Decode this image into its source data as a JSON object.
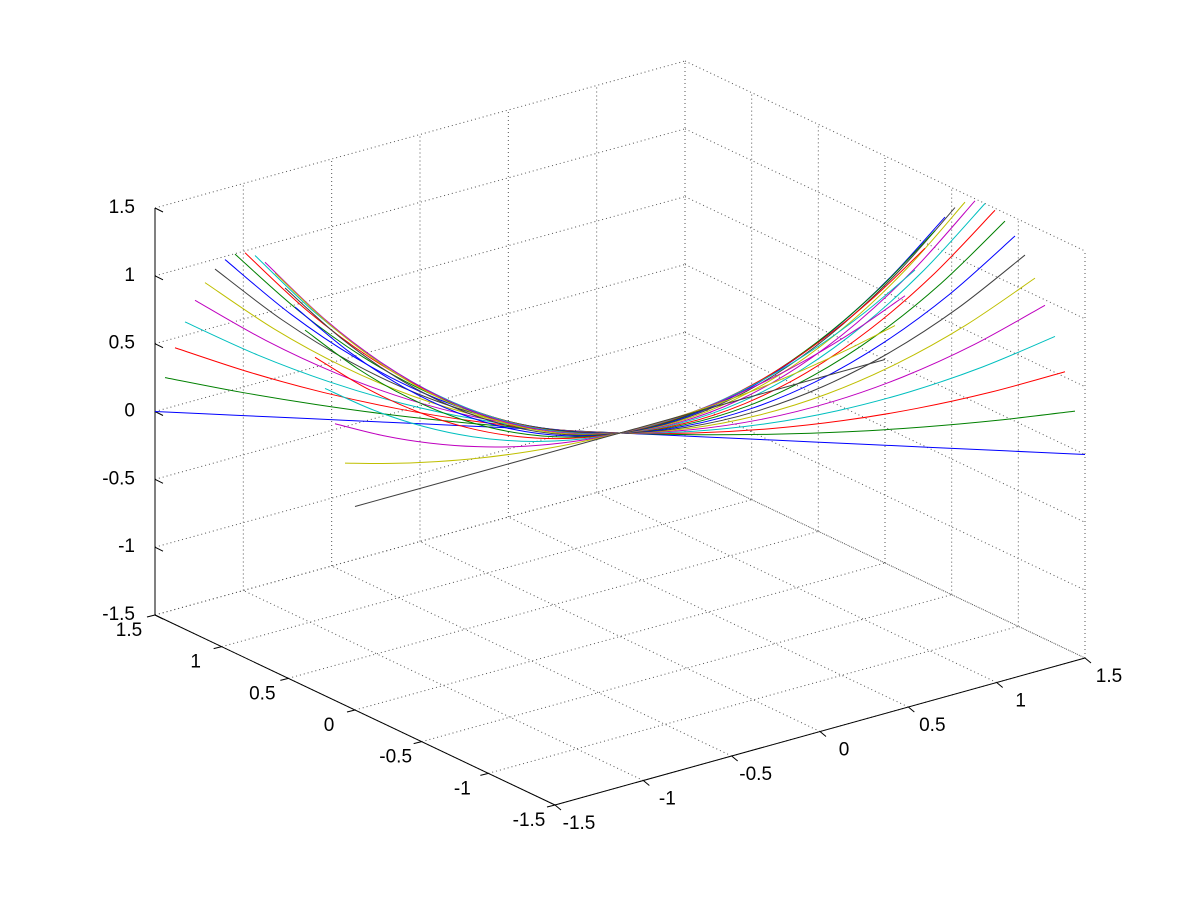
{
  "chart_data": {
    "type": "line3d",
    "xlim": [
      -1.5,
      1.5
    ],
    "ylim": [
      -1.5,
      1.5
    ],
    "zlim": [
      -1.5,
      1.5
    ],
    "xticks": [
      -1.5,
      -1,
      -0.5,
      0,
      0.5,
      1,
      1.5
    ],
    "yticks": [
      -1.5,
      -1,
      -0.5,
      0,
      0.5,
      1,
      1.5
    ],
    "zticks": [
      -1.5,
      -1,
      -0.5,
      0,
      0.5,
      1,
      1.5
    ],
    "grid": true,
    "x": [
      -1.5,
      -1.25,
      -1,
      -0.75,
      -0.5,
      -0.25,
      0,
      0.25,
      0.5,
      0.75,
      1,
      1.25,
      1.5
    ],
    "series": [
      {
        "color": "#0000ff",
        "y": [
          1.5,
          1.25,
          1,
          0.75,
          0.5,
          0.25,
          0,
          -0.25,
          -0.5,
          -0.75,
          -1,
          -1.25,
          -1.5
        ],
        "z": [
          0,
          0,
          0,
          0,
          0,
          0,
          0,
          0,
          0,
          0,
          0,
          0,
          0
        ]
      },
      {
        "color": "#008000",
        "y": [
          1.425,
          1.1875,
          0.95,
          0.7125,
          0.475,
          0.2375,
          0,
          -0.2375,
          -0.475,
          -0.7125,
          -0.95,
          -1.1875,
          -1.425
        ],
        "z": [
          0.285,
          0.198,
          0.127,
          0.071,
          0.032,
          0.008,
          0,
          0.008,
          0.032,
          0.071,
          0.127,
          0.198,
          0.285
        ]
      },
      {
        "color": "#ff0000",
        "y": [
          1.35,
          1.125,
          0.9,
          0.675,
          0.45,
          0.225,
          0,
          -0.225,
          -0.45,
          -0.675,
          -0.9,
          -1.125,
          -1.35
        ],
        "z": [
          0.54,
          0.375,
          0.24,
          0.135,
          0.06,
          0.015,
          0,
          0.015,
          0.06,
          0.135,
          0.24,
          0.375,
          0.54
        ]
      },
      {
        "color": "#00bfbf",
        "y": [
          1.275,
          1.0625,
          0.85,
          0.6375,
          0.425,
          0.2125,
          0,
          -0.2125,
          -0.425,
          -0.6375,
          -0.85,
          -1.0625,
          -1.275
        ],
        "z": [
          0.765,
          0.531,
          0.34,
          0.191,
          0.085,
          0.021,
          0,
          0.021,
          0.085,
          0.191,
          0.34,
          0.531,
          0.765
        ]
      },
      {
        "color": "#bf00bf",
        "y": [
          1.2,
          1,
          0.8,
          0.6,
          0.4,
          0.2,
          0,
          -0.2,
          -0.4,
          -0.6,
          -0.8,
          -1,
          -1.2
        ],
        "z": [
          0.96,
          0.667,
          0.427,
          0.24,
          0.107,
          0.027,
          0,
          0.027,
          0.107,
          0.24,
          0.427,
          0.667,
          0.96
        ]
      },
      {
        "color": "#bfbf00",
        "y": [
          1.125,
          0.9375,
          0.75,
          0.5625,
          0.375,
          0.1875,
          0,
          -0.1875,
          -0.375,
          -0.5625,
          -0.75,
          -0.9375,
          -1.125
        ],
        "z": [
          1.125,
          0.781,
          0.5,
          0.281,
          0.125,
          0.031,
          0,
          0.031,
          0.125,
          0.281,
          0.5,
          0.781,
          1.125
        ]
      },
      {
        "color": "#404040",
        "y": [
          1.05,
          0.875,
          0.7,
          0.525,
          0.35,
          0.175,
          0,
          -0.175,
          -0.35,
          -0.525,
          -0.7,
          -0.875,
          -1.05
        ],
        "z": [
          1.26,
          0.875,
          0.56,
          0.315,
          0.14,
          0.035,
          0,
          0.035,
          0.14,
          0.315,
          0.56,
          0.875,
          1.26
        ]
      },
      {
        "color": "#0000ff",
        "y": [
          0.975,
          0.8125,
          0.65,
          0.4875,
          0.325,
          0.1625,
          0,
          -0.1625,
          -0.325,
          -0.4875,
          -0.65,
          -0.8125,
          -0.975
        ],
        "z": [
          1.365,
          0.948,
          0.607,
          0.341,
          0.152,
          0.038,
          0,
          0.038,
          0.152,
          0.341,
          0.607,
          0.948,
          1.365
        ]
      },
      {
        "color": "#008000",
        "y": [
          0.9,
          0.75,
          0.6,
          0.45,
          0.3,
          0.15,
          0,
          -0.15,
          -0.3,
          -0.45,
          -0.6,
          -0.75,
          -0.9
        ],
        "z": [
          1.44,
          1,
          0.64,
          0.36,
          0.16,
          0.04,
          0,
          0.04,
          0.16,
          0.36,
          0.64,
          1,
          1.44
        ]
      },
      {
        "color": "#ff0000",
        "y": [
          0.825,
          0.6875,
          0.55,
          0.4125,
          0.275,
          0.1375,
          0,
          -0.1375,
          -0.275,
          -0.4125,
          -0.55,
          -0.6875,
          -0.825
        ],
        "z": [
          1.485,
          1.031,
          0.66,
          0.371,
          0.165,
          0.041,
          0,
          0.041,
          0.165,
          0.371,
          0.66,
          1.031,
          1.485
        ]
      },
      {
        "color": "#00bfbf",
        "y": [
          0.75,
          0.625,
          0.5,
          0.375,
          0.25,
          0.125,
          0,
          -0.125,
          -0.25,
          -0.375,
          -0.5,
          -0.625,
          -0.75
        ],
        "z": [
          1.5,
          1.042,
          0.667,
          0.375,
          0.167,
          0.042,
          0,
          0.042,
          0.167,
          0.375,
          0.667,
          1.042,
          1.5
        ]
      },
      {
        "color": "#bf00bf",
        "y": [
          0.675,
          0.5625,
          0.45,
          0.3375,
          0.225,
          0.1125,
          0,
          -0.1125,
          -0.225,
          -0.3375,
          -0.45,
          -0.5625,
          -0.675
        ],
        "z": [
          1.485,
          1.031,
          0.66,
          0.371,
          0.165,
          0.041,
          0,
          0.041,
          0.165,
          0.371,
          0.66,
          1.031,
          1.485
        ]
      },
      {
        "color": "#bfbf00",
        "y": [
          0.6,
          0.5,
          0.4,
          0.3,
          0.2,
          0.1,
          0,
          -0.1,
          -0.2,
          -0.3,
          -0.4,
          -0.5,
          -0.6
        ],
        "z": [
          1.44,
          1,
          0.64,
          0.36,
          0.16,
          0.04,
          0,
          0.04,
          0.16,
          0.36,
          0.64,
          1,
          1.44
        ]
      },
      {
        "color": "#404040",
        "y": [
          0.525,
          0.4375,
          0.35,
          0.2625,
          0.175,
          0.0875,
          0,
          -0.0875,
          -0.175,
          -0.2625,
          -0.35,
          -0.4375,
          -0.525
        ],
        "z": [
          1.365,
          0.948,
          0.607,
          0.341,
          0.152,
          0.038,
          0,
          0.038,
          0.152,
          0.341,
          0.607,
          0.948,
          1.365
        ]
      },
      {
        "color": "#0000ff",
        "y": [
          0.45,
          0.375,
          0.3,
          0.225,
          0.15,
          0.075,
          0,
          -0.075,
          -0.15,
          -0.225,
          -0.3,
          -0.375,
          -0.45
        ],
        "z": [
          1.26,
          0.875,
          0.56,
          0.315,
          0.14,
          0.035,
          0,
          0.035,
          0.14,
          0.315,
          0.56,
          0.875,
          1.26
        ]
      },
      {
        "color": "#008000",
        "y": [
          0.375,
          0.3125,
          0.25,
          0.1875,
          0.125,
          0.0625,
          0,
          -0.0625,
          -0.125,
          -0.1875,
          -0.25,
          -0.3125,
          -0.375
        ],
        "z": [
          1.125,
          0.781,
          0.5,
          0.281,
          0.125,
          0.031,
          0,
          0.031,
          0.125,
          0.281,
          0.5,
          0.781,
          1.125
        ]
      },
      {
        "color": "#ff0000",
        "y": [
          0.3,
          0.25,
          0.2,
          0.15,
          0.1,
          0.05,
          0,
          -0.05,
          -0.1,
          -0.15,
          -0.2,
          -0.25,
          -0.3
        ],
        "z": [
          0.96,
          0.667,
          0.427,
          0.24,
          0.107,
          0.027,
          0,
          0.027,
          0.107,
          0.24,
          0.427,
          0.667,
          0.96
        ]
      },
      {
        "color": "#00bfbf",
        "y": [
          0.225,
          0.1875,
          0.15,
          0.1125,
          0.075,
          0.0375,
          0,
          -0.0375,
          -0.075,
          -0.1125,
          -0.15,
          -0.1875,
          -0.225
        ],
        "z": [
          0.765,
          0.531,
          0.34,
          0.191,
          0.085,
          0.021,
          0,
          0.021,
          0.085,
          0.191,
          0.34,
          0.531,
          0.765
        ]
      },
      {
        "color": "#bf00bf",
        "y": [
          0.15,
          0.125,
          0.1,
          0.075,
          0.05,
          0.025,
          0,
          -0.025,
          -0.05,
          -0.075,
          -0.1,
          -0.125,
          -0.15
        ],
        "z": [
          0.54,
          0.375,
          0.24,
          0.135,
          0.06,
          0.015,
          0,
          0.015,
          0.06,
          0.135,
          0.24,
          0.375,
          0.54
        ]
      },
      {
        "color": "#bfbf00",
        "y": [
          0.075,
          0.0625,
          0.05,
          0.0375,
          0.025,
          0.0125,
          0,
          -0.0125,
          -0.025,
          -0.0375,
          -0.05,
          -0.0625,
          -0.075
        ],
        "z": [
          0.285,
          0.198,
          0.127,
          0.071,
          0.032,
          0.008,
          0,
          0.008,
          0.032,
          0.071,
          0.127,
          0.198,
          0.285
        ]
      },
      {
        "color": "#404040",
        "y": [
          0,
          0,
          0,
          0,
          0,
          0,
          0,
          0,
          0,
          0,
          0,
          0,
          0
        ],
        "z": [
          0,
          0,
          0,
          0,
          0,
          0,
          0,
          0,
          0,
          0,
          0,
          0,
          0
        ]
      }
    ]
  }
}
